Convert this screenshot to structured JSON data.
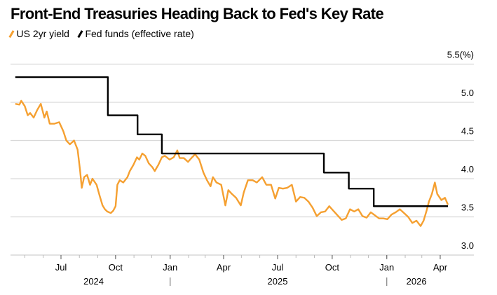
{
  "chart_data": {
    "type": "line",
    "title": "Front-End Treasuries Heading Back to Fed's Key Rate",
    "y_unit": "(%)",
    "ylim": [
      3.0,
      5.5
    ],
    "yticks": [
      "3.0",
      "3.5",
      "4.0",
      "4.5",
      "5.0",
      "5.5"
    ],
    "y_axis_side": "right",
    "grid": true,
    "legend_placement": "top-left",
    "x_ticks": [
      {
        "date": "2024-07-01",
        "label": "Jul"
      },
      {
        "date": "2024-10-01",
        "label": "Oct"
      },
      {
        "date": "2025-01-01",
        "label": "Jan"
      },
      {
        "date": "2025-04-01",
        "label": "Apr"
      },
      {
        "date": "2025-07-01",
        "label": "Jul"
      },
      {
        "date": "2025-10-01",
        "label": "Oct"
      },
      {
        "date": "2026-01-01",
        "label": "Jan"
      },
      {
        "date": "2026-04-01",
        "label": "Apr"
      }
    ],
    "years": [
      {
        "label": "2024",
        "date": "2024-08-25"
      },
      {
        "label": "2025",
        "date": "2025-07-01"
      },
      {
        "label": "2026",
        "date": "2026-02-20"
      }
    ],
    "year_separators": [
      "2025-01-01",
      "2026-01-01"
    ],
    "series": [
      {
        "name": "US 2yr yield",
        "color": "#f5a031",
        "points": [
          [
            "2024-04-15",
            4.98
          ],
          [
            "2024-04-22",
            4.97
          ],
          [
            "2024-04-25",
            5.02
          ],
          [
            "2024-05-01",
            4.95
          ],
          [
            "2024-05-06",
            4.83
          ],
          [
            "2024-05-10",
            4.86
          ],
          [
            "2024-05-16",
            4.8
          ],
          [
            "2024-05-22",
            4.9
          ],
          [
            "2024-05-28",
            4.98
          ],
          [
            "2024-06-03",
            4.8
          ],
          [
            "2024-06-07",
            4.88
          ],
          [
            "2024-06-12",
            4.72
          ],
          [
            "2024-06-20",
            4.72
          ],
          [
            "2024-06-28",
            4.74
          ],
          [
            "2024-07-05",
            4.62
          ],
          [
            "2024-07-10",
            4.5
          ],
          [
            "2024-07-16",
            4.45
          ],
          [
            "2024-07-23",
            4.5
          ],
          [
            "2024-07-29",
            4.38
          ],
          [
            "2024-08-02",
            4.12
          ],
          [
            "2024-08-05",
            3.88
          ],
          [
            "2024-08-09",
            4.02
          ],
          [
            "2024-08-14",
            4.05
          ],
          [
            "2024-08-19",
            3.92
          ],
          [
            "2024-08-23",
            4.0
          ],
          [
            "2024-08-30",
            3.92
          ],
          [
            "2024-09-04",
            3.78
          ],
          [
            "2024-09-09",
            3.65
          ],
          [
            "2024-09-13",
            3.6
          ],
          [
            "2024-09-17",
            3.57
          ],
          [
            "2024-09-23",
            3.55
          ],
          [
            "2024-09-27",
            3.58
          ],
          [
            "2024-10-01",
            3.64
          ],
          [
            "2024-10-04",
            3.92
          ],
          [
            "2024-10-08",
            3.98
          ],
          [
            "2024-10-14",
            3.95
          ],
          [
            "2024-10-21",
            4.02
          ],
          [
            "2024-10-25",
            4.1
          ],
          [
            "2024-10-31",
            4.18
          ],
          [
            "2024-11-06",
            4.28
          ],
          [
            "2024-11-10",
            4.25
          ],
          [
            "2024-11-15",
            4.33
          ],
          [
            "2024-11-20",
            4.3
          ],
          [
            "2024-11-26",
            4.2
          ],
          [
            "2024-12-02",
            4.15
          ],
          [
            "2024-12-06",
            4.1
          ],
          [
            "2024-12-12",
            4.18
          ],
          [
            "2024-12-18",
            4.28
          ],
          [
            "2024-12-23",
            4.3
          ],
          [
            "2024-12-31",
            4.25
          ],
          [
            "2025-01-07",
            4.28
          ],
          [
            "2025-01-13",
            4.37
          ],
          [
            "2025-01-17",
            4.27
          ],
          [
            "2025-01-24",
            4.27
          ],
          [
            "2025-01-31",
            4.22
          ],
          [
            "2025-02-07",
            4.28
          ],
          [
            "2025-02-12",
            4.32
          ],
          [
            "2025-02-19",
            4.25
          ],
          [
            "2025-02-26",
            4.08
          ],
          [
            "2025-03-04",
            3.98
          ],
          [
            "2025-03-10",
            3.9
          ],
          [
            "2025-03-14",
            4.02
          ],
          [
            "2025-03-20",
            3.95
          ],
          [
            "2025-03-28",
            3.92
          ],
          [
            "2025-04-04",
            3.65
          ],
          [
            "2025-04-09",
            3.85
          ],
          [
            "2025-04-15",
            3.8
          ],
          [
            "2025-04-22",
            3.75
          ],
          [
            "2025-04-30",
            3.65
          ],
          [
            "2025-05-05",
            3.82
          ],
          [
            "2025-05-12",
            3.98
          ],
          [
            "2025-05-20",
            3.98
          ],
          [
            "2025-05-27",
            3.95
          ],
          [
            "2025-06-05",
            4.02
          ],
          [
            "2025-06-12",
            3.92
          ],
          [
            "2025-06-20",
            3.92
          ],
          [
            "2025-06-27",
            3.74
          ],
          [
            "2025-07-03",
            3.88
          ],
          [
            "2025-07-10",
            3.87
          ],
          [
            "2025-07-17",
            3.88
          ],
          [
            "2025-07-25",
            3.92
          ],
          [
            "2025-08-01",
            3.7
          ],
          [
            "2025-08-08",
            3.76
          ],
          [
            "2025-08-15",
            3.75
          ],
          [
            "2025-08-22",
            3.7
          ],
          [
            "2025-08-29",
            3.62
          ],
          [
            "2025-09-05",
            3.51
          ],
          [
            "2025-09-12",
            3.56
          ],
          [
            "2025-09-19",
            3.57
          ],
          [
            "2025-09-26",
            3.64
          ],
          [
            "2025-10-03",
            3.58
          ],
          [
            "2025-10-10",
            3.52
          ],
          [
            "2025-10-17",
            3.46
          ],
          [
            "2025-10-24",
            3.48
          ],
          [
            "2025-10-31",
            3.6
          ],
          [
            "2025-11-07",
            3.57
          ],
          [
            "2025-11-14",
            3.6
          ],
          [
            "2025-11-21",
            3.51
          ],
          [
            "2025-11-28",
            3.49
          ],
          [
            "2025-12-05",
            3.56
          ],
          [
            "2025-12-12",
            3.52
          ],
          [
            "2025-12-19",
            3.48
          ],
          [
            "2025-12-26",
            3.48
          ],
          [
            "2026-01-02",
            3.47
          ],
          [
            "2026-01-09",
            3.53
          ],
          [
            "2026-01-16",
            3.56
          ],
          [
            "2026-01-23",
            3.6
          ],
          [
            "2026-01-30",
            3.55
          ],
          [
            "2026-02-06",
            3.5
          ],
          [
            "2026-02-13",
            3.42
          ],
          [
            "2026-02-20",
            3.45
          ],
          [
            "2026-02-27",
            3.38
          ],
          [
            "2026-03-04",
            3.45
          ],
          [
            "2026-03-09",
            3.58
          ],
          [
            "2026-03-13",
            3.7
          ],
          [
            "2026-03-18",
            3.8
          ],
          [
            "2026-03-23",
            3.95
          ],
          [
            "2026-03-27",
            3.8
          ],
          [
            "2026-04-03",
            3.72
          ],
          [
            "2026-04-09",
            3.75
          ],
          [
            "2026-04-14",
            3.66
          ]
        ]
      },
      {
        "name": "Fed funds (effective rate)",
        "color": "#000000",
        "step": true,
        "points": [
          [
            "2024-04-15",
            5.33
          ],
          [
            "2024-09-18",
            4.83
          ],
          [
            "2024-11-07",
            4.58
          ],
          [
            "2024-12-18",
            4.33
          ],
          [
            "2025-09-17",
            4.08
          ],
          [
            "2025-10-29",
            3.87
          ],
          [
            "2025-12-10",
            3.64
          ],
          [
            "2026-04-14",
            3.64
          ]
        ]
      }
    ]
  }
}
